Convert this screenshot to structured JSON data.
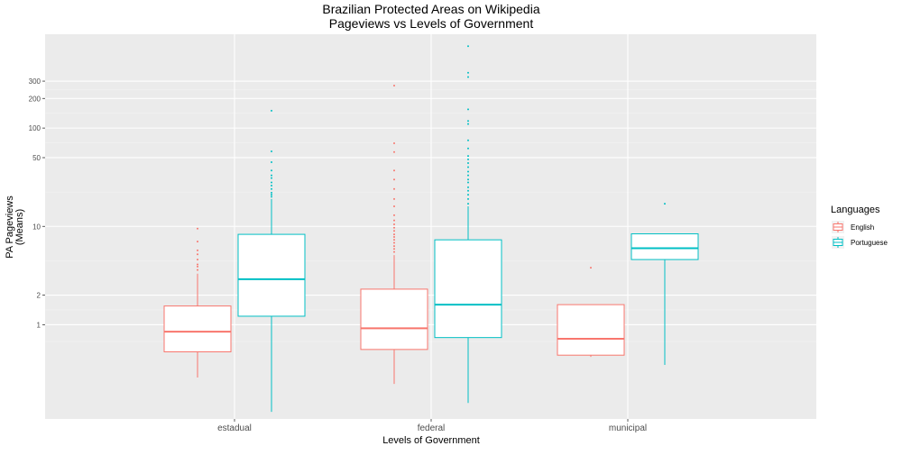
{
  "chart_data": {
    "type": "boxplot",
    "title": "Brazilian Protected Areas on Wikipedia",
    "subtitle": "Pageviews vs Levels of Government",
    "xlabel": "Levels of Government",
    "ylabel_line1": "PA Pageviews",
    "ylabel_line2": "(Means)",
    "y_scale": "log10",
    "ylim": [
      0.11,
      900
    ],
    "y_ticks": [
      {
        "value": 1,
        "label": "1"
      },
      {
        "value": 2,
        "label": "2"
      },
      {
        "value": 10,
        "label": "10"
      },
      {
        "value": 50,
        "label": "50"
      },
      {
        "value": 100,
        "label": "100"
      },
      {
        "value": 200,
        "label": "200"
      },
      {
        "value": 300,
        "label": "300"
      }
    ],
    "categories": [
      "estadual",
      "federal",
      "municipal"
    ],
    "legend": {
      "title": "Languages",
      "position": "right",
      "entries": [
        {
          "name": "English",
          "color": "#F8766D"
        },
        {
          "name": "Portuguese",
          "color": "#00BFC4"
        }
      ]
    },
    "series": [
      {
        "name": "English",
        "color": "#F8766D",
        "boxes": [
          {
            "category": "estadual",
            "whisker_low": 0.29,
            "q1": 0.53,
            "median": 0.85,
            "q3": 1.55,
            "whisker_high": 3.3,
            "outliers": [
              3.6,
              3.9,
              4.1,
              4.6,
              5.2,
              5.7,
              7.0,
              9.5
            ]
          },
          {
            "category": "federal",
            "whisker_low": 0.25,
            "q1": 0.56,
            "median": 0.92,
            "q3": 2.3,
            "whisker_high": 5.1,
            "outliers": [
              5.5,
              5.9,
              6.3,
              6.8,
              7.3,
              7.8,
              8.3,
              9.0,
              9.7,
              10.5,
              11.5,
              13,
              16,
              19,
              24,
              30,
              37,
              57,
              70,
              270
            ]
          },
          {
            "category": "municipal",
            "whisker_low": 0.47,
            "q1": 0.49,
            "median": 0.72,
            "q3": 1.6,
            "whisker_high": 1.6,
            "outliers": [
              3.8
            ]
          }
        ]
      },
      {
        "name": "Portuguese",
        "color": "#00BFC4",
        "boxes": [
          {
            "category": "estadual",
            "whisker_low": 0.13,
            "q1": 1.22,
            "median": 2.9,
            "q3": 8.3,
            "whisker_high": 19,
            "outliers": [
              20,
              21,
              22,
              24,
              26,
              28,
              31,
              33,
              37,
              45,
              58,
              150
            ]
          },
          {
            "category": "federal",
            "whisker_low": 0.16,
            "q1": 0.74,
            "median": 1.6,
            "q3": 7.3,
            "whisker_high": 16,
            "outliers": [
              17,
              19,
              21,
              23,
              25,
              28,
              30,
              33,
              36,
              40,
              44,
              48,
              52,
              62,
              75,
              110,
              118,
              155,
              330,
              365,
              680
            ]
          },
          {
            "category": "municipal",
            "whisker_low": 0.39,
            "q1": 4.6,
            "median": 6.0,
            "q3": 8.4,
            "whisker_high": 8.4,
            "outliers": [
              17
            ]
          }
        ]
      }
    ]
  }
}
